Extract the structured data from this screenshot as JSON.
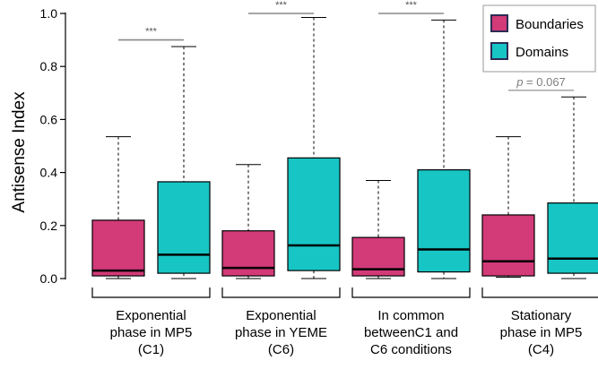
{
  "chart_data": {
    "type": "boxplot",
    "ylabel": "Antisense Index",
    "ylim": [
      0.0,
      1.0
    ],
    "yticks": [
      "0.0",
      "0.2",
      "0.4",
      "0.6",
      "0.8",
      "1.0"
    ],
    "categories": [
      [
        "Exponential",
        "phase in MP5",
        "(C1)"
      ],
      [
        "Exponential",
        "phase in YEME",
        "(C6)"
      ],
      [
        "In common",
        "betweenC1 and",
        "C6 conditions"
      ],
      [
        "Stationary",
        "phase in MP5",
        "(C4)"
      ]
    ],
    "series": [
      {
        "name": "Boundaries",
        "color": "#d23a78",
        "boxes": [
          {
            "min": 0.0,
            "q1": 0.01,
            "median": 0.03,
            "q3": 0.22,
            "max": 0.535
          },
          {
            "min": 0.0,
            "q1": 0.01,
            "median": 0.04,
            "q3": 0.18,
            "max": 0.43
          },
          {
            "min": 0.0,
            "q1": 0.01,
            "median": 0.035,
            "q3": 0.155,
            "max": 0.37
          },
          {
            "min": 0.005,
            "q1": 0.01,
            "median": 0.065,
            "q3": 0.24,
            "max": 0.535
          }
        ]
      },
      {
        "name": "Domains",
        "color": "#17c5c5",
        "boxes": [
          {
            "min": 0.0,
            "q1": 0.02,
            "median": 0.09,
            "q3": 0.365,
            "max": 0.875
          },
          {
            "min": 0.0,
            "q1": 0.03,
            "median": 0.125,
            "q3": 0.455,
            "max": 0.985
          },
          {
            "min": 0.0,
            "q1": 0.025,
            "median": 0.11,
            "q3": 0.41,
            "max": 0.975
          },
          {
            "min": 0.0,
            "q1": 0.02,
            "median": 0.075,
            "q3": 0.285,
            "max": 0.685
          }
        ]
      }
    ],
    "significance": [
      {
        "group": 0,
        "label": "***",
        "y": 0.9
      },
      {
        "group": 1,
        "label": "***",
        "y": 1.0
      },
      {
        "group": 2,
        "label": "***",
        "y": 1.0
      },
      {
        "group": 3,
        "label_p": "p",
        "label_rest": " = 0.067",
        "y": 0.71
      }
    ],
    "legend": {
      "position": "top-right"
    },
    "grid": false
  }
}
